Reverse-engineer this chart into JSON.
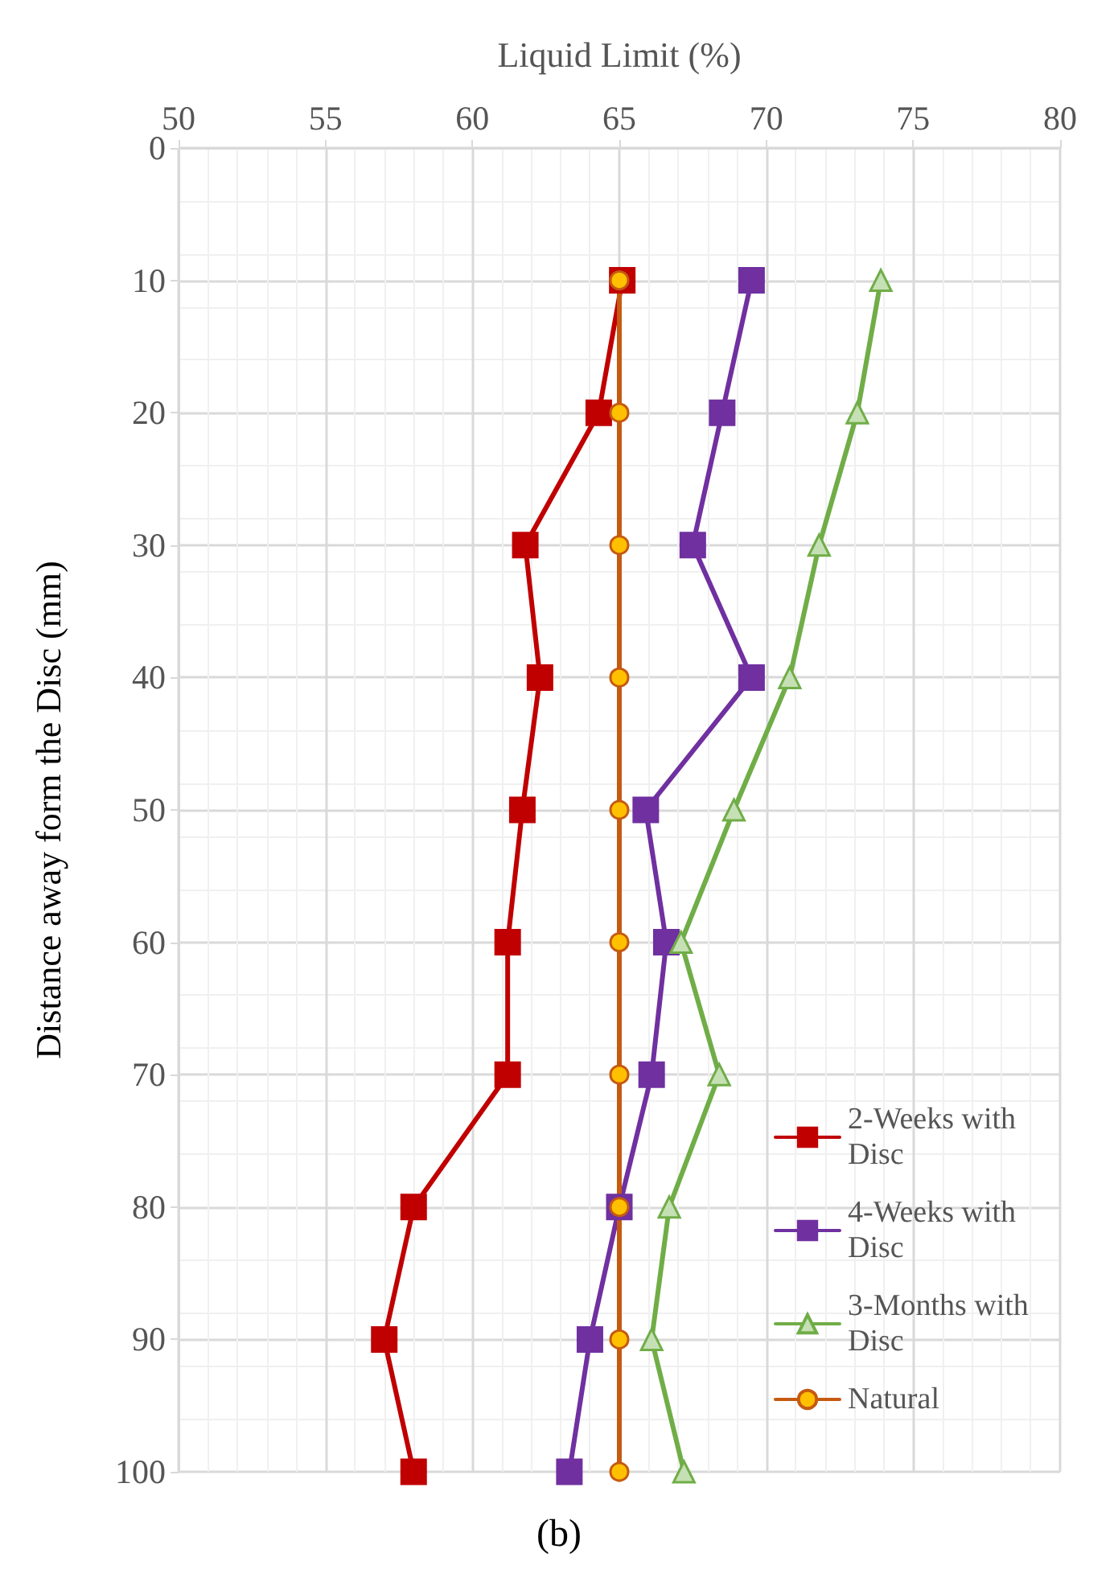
{
  "chart_data": {
    "type": "line",
    "xlabel": "Liquid Limit (%)",
    "ylabel": "Distance away form the Disc (mm)",
    "annotations": [
      "(b)"
    ],
    "xlim": [
      50,
      80
    ],
    "xticks": [
      50,
      55,
      60,
      65,
      70,
      75,
      80
    ],
    "ylim": [
      100,
      0
    ],
    "yticks": [
      0,
      10,
      20,
      30,
      40,
      50,
      60,
      70,
      80,
      90,
      100
    ],
    "grid": true,
    "legend": "bottom right",
    "line_style": "solid",
    "series": [
      {
        "name": "2-Weeks with Disc",
        "color": "#c00000",
        "marker": "square",
        "x": [
          65.1,
          64.3,
          61.8,
          62.3,
          61.7,
          61.2,
          61.2,
          58.0,
          57.0,
          58.0
        ],
        "values": [
          10,
          20,
          30,
          40,
          50,
          60,
          70,
          80,
          90,
          100
        ]
      },
      {
        "name": "4-Weeks with Disc",
        "color": "#7030a0",
        "marker": "square",
        "x": [
          69.5,
          68.5,
          67.5,
          69.5,
          65.9,
          66.6,
          66.1,
          65.0,
          64.0,
          63.3
        ],
        "values": [
          10,
          20,
          30,
          40,
          50,
          60,
          70,
          80,
          90,
          100
        ]
      },
      {
        "name": "3-Months with Disc",
        "color": "#70ad47",
        "marker": "triangle",
        "x": [
          73.9,
          73.1,
          71.8,
          70.8,
          68.9,
          67.1,
          68.4,
          66.7,
          66.1,
          67.2
        ],
        "values": [
          10,
          20,
          30,
          40,
          50,
          60,
          70,
          80,
          90,
          100
        ]
      },
      {
        "name": "Natural",
        "color": "#c55a11",
        "marker": "circle",
        "x": [
          65,
          65,
          65,
          65,
          65,
          65,
          65,
          65,
          65,
          65
        ],
        "values": [
          10,
          20,
          30,
          40,
          50,
          60,
          70,
          80,
          90,
          100
        ]
      }
    ]
  }
}
